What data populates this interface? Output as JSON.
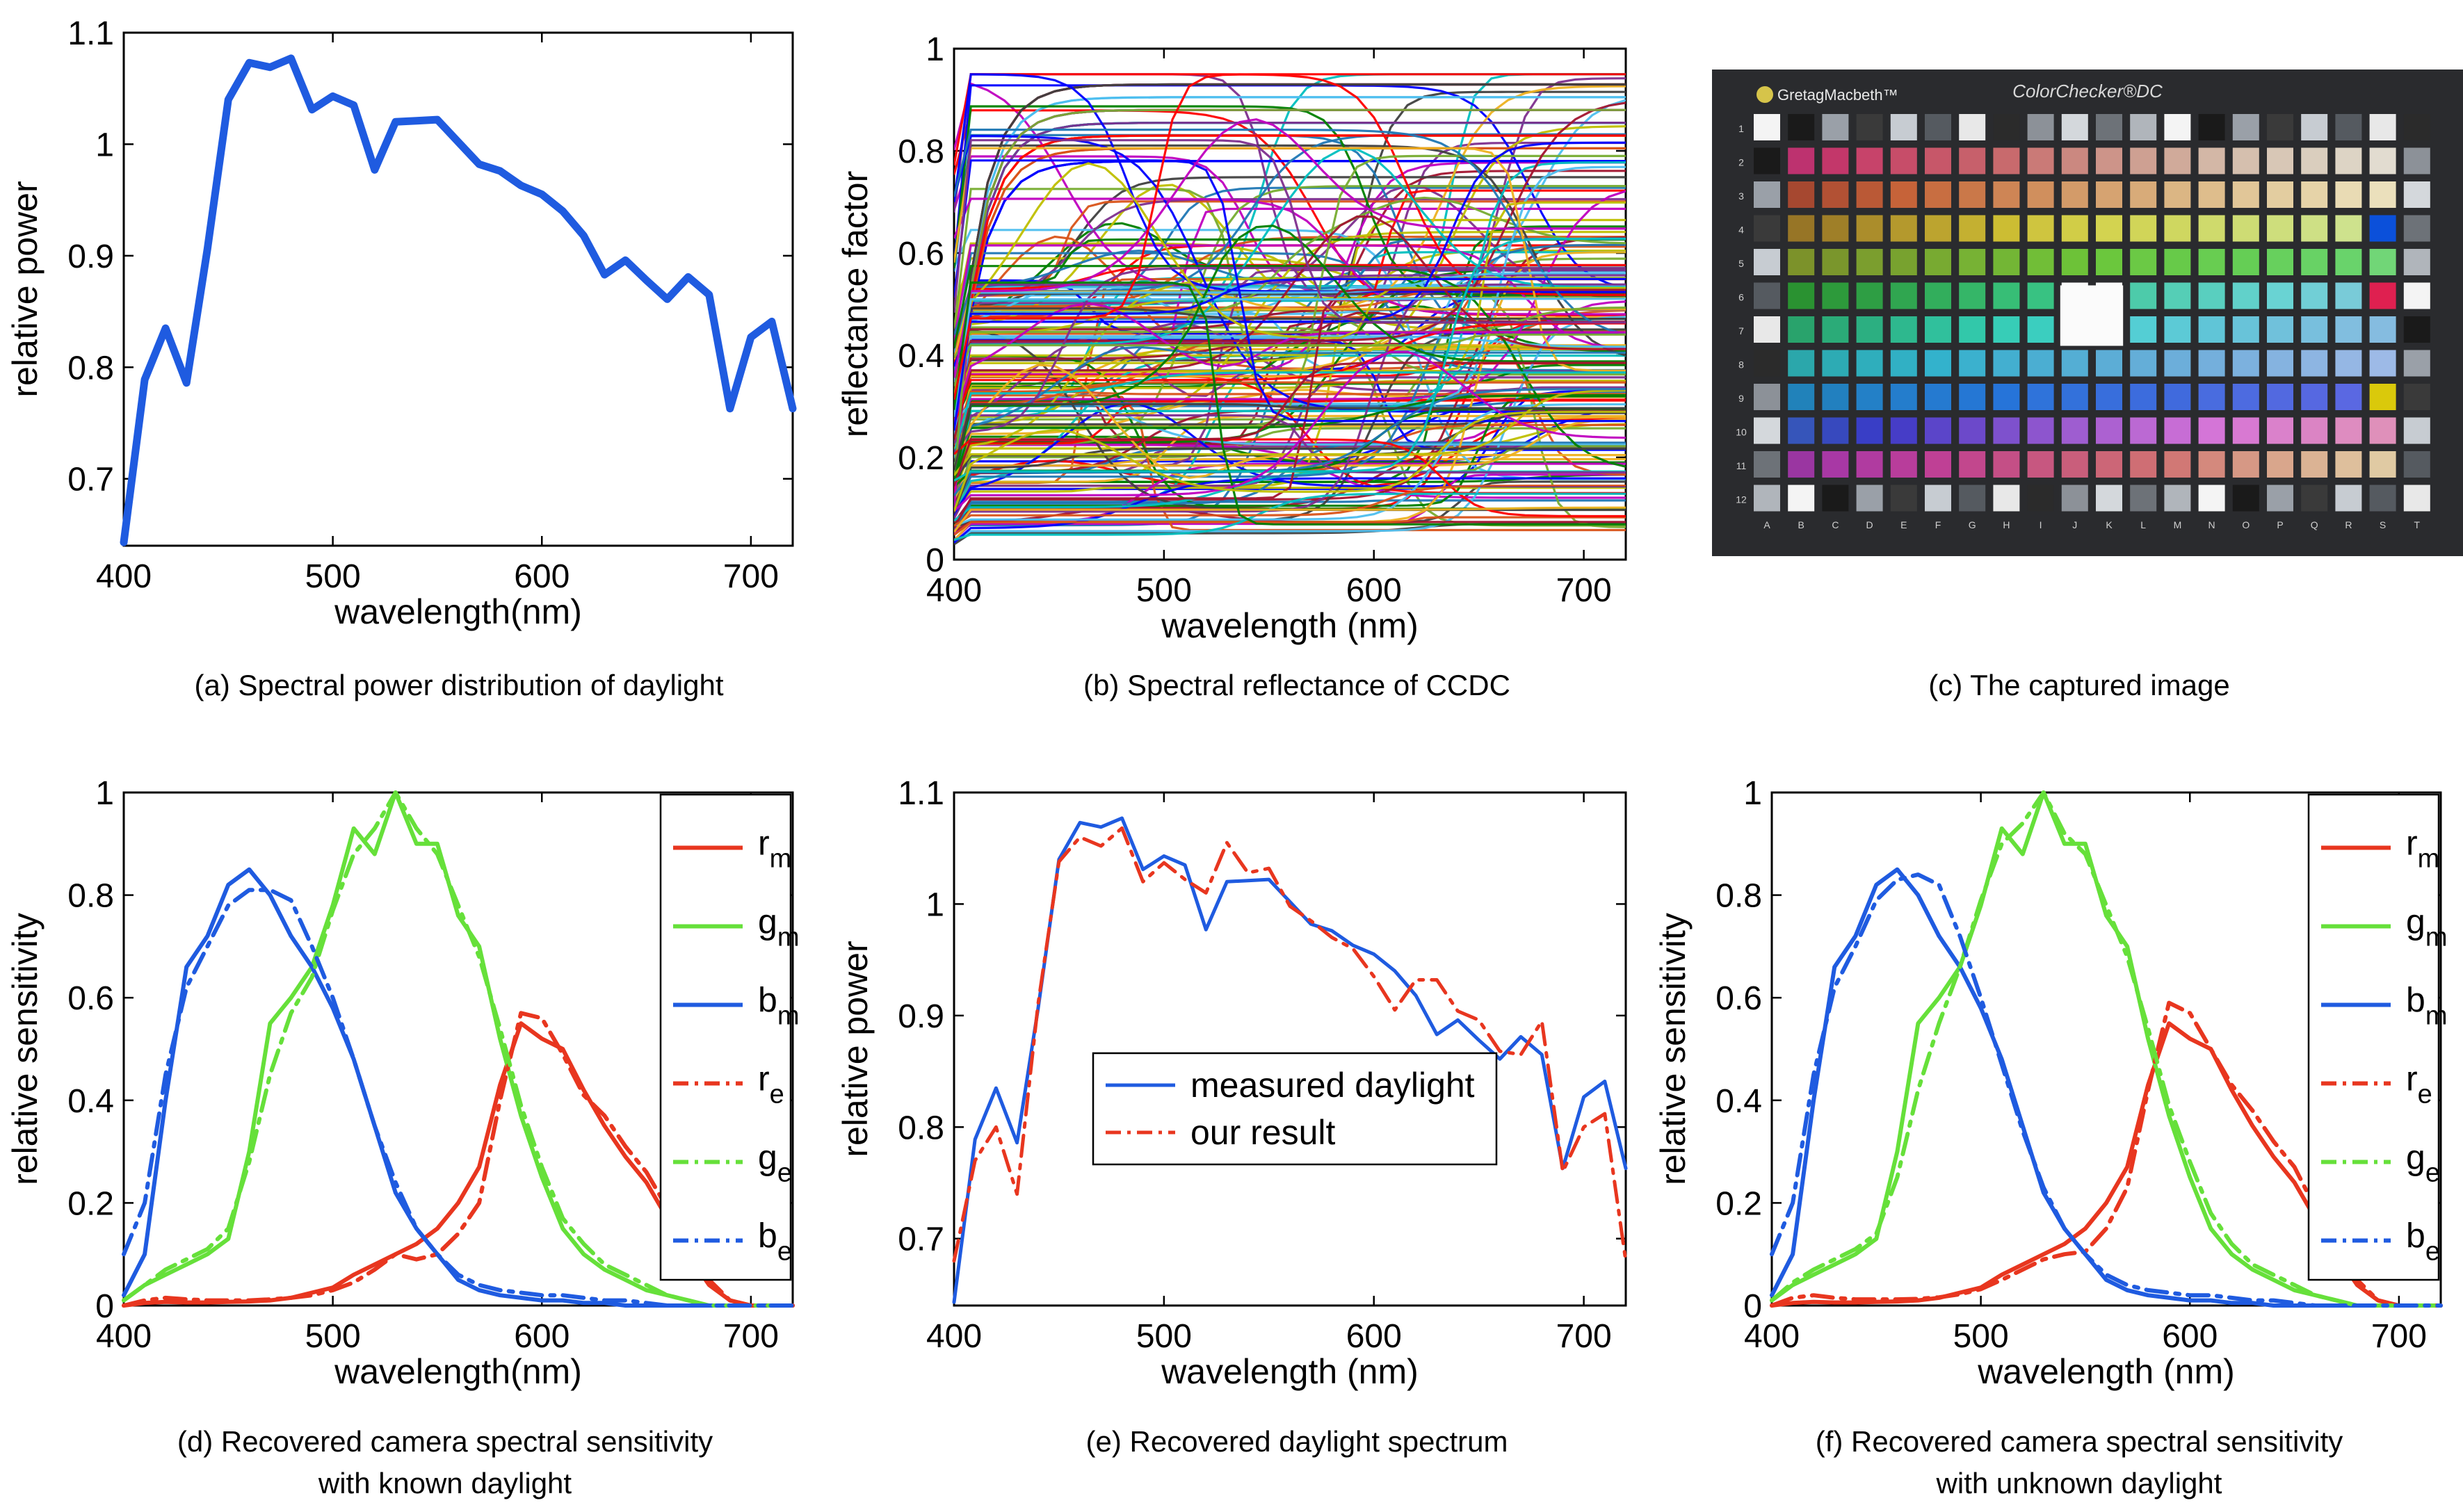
{
  "figure": {
    "captions": {
      "a": "(a) Spectral power distribution of daylight",
      "b": "(b) Spectral reflectance of CCDC",
      "c": "(c) The captured image",
      "d_line1": "(d) Recovered camera spectral sensitivity",
      "d_line2": "with known daylight",
      "e": "(e) Recovered daylight spectrum",
      "f_line1": "(f) Recovered camera spectral sensitivity",
      "f_line2": "with unknown daylight"
    }
  },
  "colorchecker": {
    "brand": "GretagMacbeth™",
    "title": "ColorChecker®DC",
    "row_labels": [
      "1",
      "2",
      "3",
      "4",
      "5",
      "6",
      "7",
      "8",
      "9",
      "10",
      "11",
      "12"
    ],
    "col_labels": [
      "A",
      "B",
      "C",
      "D",
      "E",
      "F",
      "G",
      "H",
      "I",
      "J",
      "K",
      "L",
      "M",
      "N",
      "O",
      "P",
      "Q",
      "R",
      "S",
      "T"
    ]
  },
  "chart_data": [
    {
      "id": "a",
      "type": "line",
      "xlabel": "wavelength(nm)",
      "ylabel": "relative power",
      "xlim": [
        400,
        720
      ],
      "ylim": [
        0.64,
        1.1
      ],
      "xticks": [
        400,
        500,
        600,
        700
      ],
      "yticks": [
        0.7,
        0.8,
        0.9,
        1,
        1.1
      ],
      "series": [
        {
          "color": "#1f5be0",
          "style": "solid",
          "width": 7,
          "x": [
            400,
            410,
            420,
            430,
            440,
            450,
            460,
            470,
            480,
            490,
            500,
            510,
            520,
            530,
            540,
            550,
            560,
            570,
            580,
            590,
            600,
            610,
            620,
            630,
            640,
            650,
            660,
            670,
            680,
            690,
            700,
            710,
            720
          ],
          "y": [
            0.643,
            0.789,
            0.835,
            0.786,
            0.906,
            1.04,
            1.073,
            1.069,
            1.077,
            1.031,
            1.043,
            1.035,
            0.977,
            1.02,
            1.021,
            1.022,
            1.002,
            0.982,
            0.976,
            0.963,
            0.955,
            0.94,
            0.918,
            0.883,
            0.896,
            0.878,
            0.861,
            0.881,
            0.865,
            0.763,
            0.827,
            0.841,
            0.763
          ]
        }
      ]
    },
    {
      "id": "b",
      "type": "line",
      "xlabel": "wavelength (nm)",
      "ylabel": "reflectance factor",
      "xlim": [
        400,
        720
      ],
      "ylim": [
        0,
        1
      ],
      "xticks": [
        400,
        500,
        600,
        700
      ],
      "yticks": [
        0,
        0.2,
        0.4,
        0.6,
        0.8,
        1
      ],
      "description_series": "dense bundle of many colored reflectance curves",
      "palette": [
        "#0000ff",
        "#008000",
        "#ff0000",
        "#00bfbf",
        "#bf00bf",
        "#bfbf00",
        "#404040",
        "#1f77b4",
        "#d95319",
        "#edb120",
        "#7e2f8e",
        "#77ac30",
        "#4dbeee",
        "#a2142f"
      ]
    },
    {
      "id": "d",
      "type": "line",
      "xlabel": "wavelength(nm)",
      "ylabel": "relative sensitivity",
      "xlim": [
        400,
        720
      ],
      "ylim": [
        0,
        1
      ],
      "xticks": [
        400,
        500,
        600,
        700
      ],
      "yticks": [
        0,
        0.2,
        0.4,
        0.6,
        0.8,
        1
      ],
      "legend_position": "top-right",
      "x": [
        400,
        410,
        420,
        430,
        440,
        450,
        460,
        470,
        480,
        490,
        500,
        510,
        520,
        530,
        540,
        550,
        560,
        570,
        580,
        590,
        600,
        610,
        620,
        630,
        640,
        650,
        660,
        670,
        680,
        690,
        700,
        710,
        720
      ],
      "series": [
        {
          "name": "r",
          "sub": "m",
          "color": "#e8361f",
          "style": "solid",
          "y": [
            0,
            0.005,
            0.007,
            0.006,
            0.006,
            0.007,
            0.008,
            0.01,
            0.015,
            0.025,
            0.035,
            0.06,
            0.08,
            0.1,
            0.12,
            0.15,
            0.2,
            0.27,
            0.43,
            0.55,
            0.52,
            0.5,
            0.42,
            0.35,
            0.29,
            0.24,
            0.17,
            0.1,
            0.04,
            0.01,
            0,
            0,
            0
          ]
        },
        {
          "name": "g",
          "sub": "m",
          "color": "#66e03a",
          "style": "solid",
          "y": [
            0.01,
            0.04,
            0.06,
            0.08,
            0.1,
            0.13,
            0.3,
            0.55,
            0.6,
            0.66,
            0.78,
            0.93,
            0.88,
            1,
            0.9,
            0.9,
            0.76,
            0.7,
            0.52,
            0.37,
            0.25,
            0.15,
            0.1,
            0.07,
            0.05,
            0.03,
            0.02,
            0.01,
            0,
            0,
            0,
            0,
            0
          ]
        },
        {
          "name": "b",
          "sub": "m",
          "color": "#1f5be0",
          "style": "solid",
          "y": [
            0.02,
            0.1,
            0.4,
            0.66,
            0.72,
            0.82,
            0.85,
            0.8,
            0.72,
            0.66,
            0.58,
            0.48,
            0.35,
            0.22,
            0.15,
            0.1,
            0.05,
            0.03,
            0.02,
            0.015,
            0.01,
            0.01,
            0.005,
            0.005,
            0,
            0,
            0,
            0,
            0,
            0,
            0,
            0,
            0
          ]
        },
        {
          "name": "r",
          "sub": "e",
          "color": "#e8361f",
          "style": "dashdot",
          "y": [
            0,
            0.01,
            0.015,
            0.012,
            0.01,
            0.01,
            0.01,
            0.012,
            0.015,
            0.02,
            0.03,
            0.045,
            0.07,
            0.1,
            0.09,
            0.1,
            0.14,
            0.2,
            0.4,
            0.57,
            0.56,
            0.49,
            0.41,
            0.37,
            0.31,
            0.26,
            0.19,
            0.11,
            0.05,
            0.01,
            0,
            0,
            0
          ]
        },
        {
          "name": "g",
          "sub": "e",
          "color": "#66e03a",
          "style": "dashdot",
          "y": [
            0.01,
            0.04,
            0.07,
            0.09,
            0.11,
            0.15,
            0.28,
            0.45,
            0.57,
            0.64,
            0.77,
            0.88,
            0.93,
            1,
            0.93,
            0.88,
            0.78,
            0.68,
            0.54,
            0.39,
            0.27,
            0.17,
            0.12,
            0.08,
            0.06,
            0.04,
            0.02,
            0.01,
            0,
            0,
            0,
            0,
            0
          ]
        },
        {
          "name": "b",
          "sub": "e",
          "color": "#1f5be0",
          "style": "dashdot",
          "y": [
            0.1,
            0.2,
            0.45,
            0.62,
            0.7,
            0.78,
            0.81,
            0.81,
            0.79,
            0.7,
            0.6,
            0.48,
            0.35,
            0.24,
            0.15,
            0.1,
            0.06,
            0.04,
            0.03,
            0.025,
            0.02,
            0.02,
            0.015,
            0.01,
            0.01,
            0.005,
            0,
            0,
            0,
            0,
            0,
            0,
            0
          ]
        }
      ]
    },
    {
      "id": "e",
      "type": "line",
      "xlabel": "wavelength (nm)",
      "ylabel": "relative power",
      "xlim": [
        400,
        720
      ],
      "ylim": [
        0.64,
        1.1
      ],
      "xticks": [
        400,
        500,
        600,
        700
      ],
      "yticks": [
        0.7,
        0.8,
        0.9,
        1,
        1.1
      ],
      "legend_position": "lower-center",
      "x": [
        400,
        410,
        420,
        430,
        440,
        450,
        460,
        470,
        480,
        490,
        500,
        510,
        520,
        530,
        540,
        550,
        560,
        570,
        580,
        590,
        600,
        610,
        620,
        630,
        640,
        650,
        660,
        670,
        680,
        690,
        700,
        710,
        720
      ],
      "series": [
        {
          "name": "measured daylight",
          "color": "#1f5be0",
          "style": "solid",
          "y": [
            0.643,
            0.789,
            0.835,
            0.786,
            0.906,
            1.04,
            1.073,
            1.069,
            1.077,
            1.031,
            1.043,
            1.035,
            0.977,
            1.02,
            1.021,
            1.022,
            1.002,
            0.982,
            0.976,
            0.963,
            0.955,
            0.94,
            0.918,
            0.883,
            0.896,
            0.878,
            0.861,
            0.881,
            0.865,
            0.763,
            0.827,
            0.841,
            0.763
          ]
        },
        {
          "name": "our result",
          "color": "#e8361f",
          "style": "dashdot",
          "y": [
            0.68,
            0.77,
            0.8,
            0.74,
            0.91,
            1.038,
            1.06,
            1.052,
            1.068,
            1.02,
            1.037,
            1.022,
            1.01,
            1.055,
            1.028,
            1.032,
            0.998,
            0.985,
            0.97,
            0.96,
            0.935,
            0.905,
            0.932,
            0.932,
            0.904,
            0.896,
            0.868,
            0.865,
            0.895,
            0.76,
            0.8,
            0.812,
            0.68
          ]
        }
      ]
    },
    {
      "id": "f",
      "type": "line",
      "xlabel": "wavelength (nm)",
      "ylabel": "relative sensitivity",
      "xlim": [
        400,
        720
      ],
      "ylim": [
        0,
        1
      ],
      "xticks": [
        400,
        500,
        600,
        700
      ],
      "yticks": [
        0,
        0.2,
        0.4,
        0.6,
        0.8,
        1
      ],
      "legend_position": "top-right",
      "x": [
        400,
        410,
        420,
        430,
        440,
        450,
        460,
        470,
        480,
        490,
        500,
        510,
        520,
        530,
        540,
        550,
        560,
        570,
        580,
        590,
        600,
        610,
        620,
        630,
        640,
        650,
        660,
        670,
        680,
        690,
        700,
        710,
        720
      ],
      "series": [
        {
          "name": "r",
          "sub": "m",
          "color": "#e8361f",
          "style": "solid",
          "y": [
            0,
            0.005,
            0.007,
            0.006,
            0.006,
            0.007,
            0.008,
            0.01,
            0.015,
            0.025,
            0.035,
            0.06,
            0.08,
            0.1,
            0.12,
            0.15,
            0.2,
            0.27,
            0.43,
            0.55,
            0.52,
            0.5,
            0.42,
            0.35,
            0.29,
            0.24,
            0.17,
            0.1,
            0.04,
            0.01,
            0,
            0,
            0
          ]
        },
        {
          "name": "g",
          "sub": "m",
          "color": "#66e03a",
          "style": "solid",
          "y": [
            0.01,
            0.04,
            0.06,
            0.08,
            0.1,
            0.13,
            0.3,
            0.55,
            0.6,
            0.66,
            0.78,
            0.93,
            0.88,
            1,
            0.9,
            0.9,
            0.76,
            0.7,
            0.52,
            0.37,
            0.25,
            0.15,
            0.1,
            0.07,
            0.05,
            0.03,
            0.02,
            0.01,
            0,
            0,
            0,
            0,
            0
          ]
        },
        {
          "name": "b",
          "sub": "m",
          "color": "#1f5be0",
          "style": "solid",
          "y": [
            0.02,
            0.1,
            0.4,
            0.66,
            0.72,
            0.82,
            0.85,
            0.8,
            0.72,
            0.66,
            0.58,
            0.48,
            0.35,
            0.22,
            0.15,
            0.1,
            0.05,
            0.03,
            0.02,
            0.015,
            0.01,
            0.01,
            0.005,
            0.005,
            0,
            0,
            0,
            0,
            0,
            0,
            0,
            0,
            0
          ]
        },
        {
          "name": "r",
          "sub": "e",
          "color": "#e8361f",
          "style": "dashdot",
          "y": [
            0,
            0.015,
            0.02,
            0.015,
            0.012,
            0.012,
            0.012,
            0.013,
            0.016,
            0.022,
            0.032,
            0.05,
            0.07,
            0.09,
            0.1,
            0.105,
            0.15,
            0.23,
            0.42,
            0.59,
            0.57,
            0.5,
            0.43,
            0.38,
            0.32,
            0.27,
            0.19,
            0.12,
            0.05,
            0.01,
            0,
            0,
            0
          ]
        },
        {
          "name": "g",
          "sub": "e",
          "color": "#66e03a",
          "style": "dashdot",
          "y": [
            0.01,
            0.045,
            0.07,
            0.09,
            0.11,
            0.14,
            0.25,
            0.42,
            0.55,
            0.66,
            0.79,
            0.9,
            0.94,
            1,
            0.92,
            0.88,
            0.78,
            0.68,
            0.54,
            0.39,
            0.28,
            0.18,
            0.12,
            0.08,
            0.06,
            0.04,
            0.02,
            0.01,
            0,
            0,
            0,
            0,
            0
          ]
        },
        {
          "name": "b",
          "sub": "e",
          "color": "#1f5be0",
          "style": "dashdot",
          "y": [
            0.1,
            0.2,
            0.45,
            0.62,
            0.7,
            0.79,
            0.83,
            0.84,
            0.82,
            0.72,
            0.6,
            0.47,
            0.34,
            0.23,
            0.15,
            0.1,
            0.06,
            0.04,
            0.03,
            0.025,
            0.02,
            0.02,
            0.015,
            0.01,
            0.01,
            0.005,
            0,
            0,
            0,
            0,
            0,
            0,
            0
          ]
        }
      ]
    }
  ]
}
